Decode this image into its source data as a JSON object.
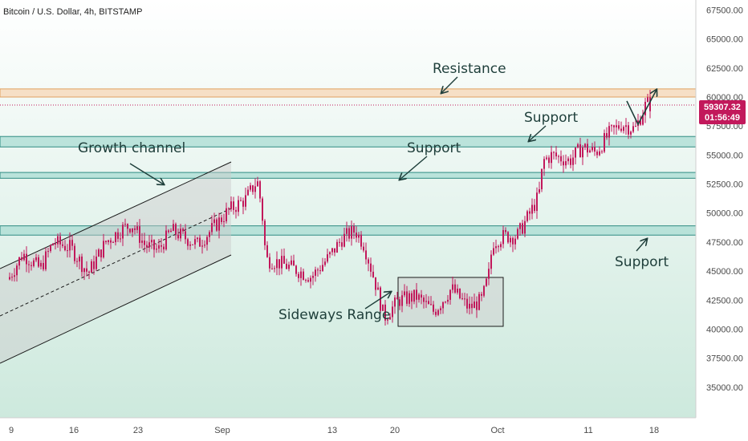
{
  "header": {
    "title": "Bitcoin / U.S. Dollar, 4h, BITSTAMP"
  },
  "price_tag": {
    "price": "59307.32",
    "countdown": "01:56:49",
    "color": "#c2185b"
  },
  "colors": {
    "background_top": "#ffffff",
    "background_bottom": "#cde9dd",
    "candle": "#c2185b",
    "zone_fill": "#a9dcd3",
    "zone_stroke": "#2e8b82",
    "resistance_fill": "#f6dcc0",
    "resistance_stroke": "#e0a060",
    "annotation": "#1e3e3a"
  },
  "chart_data": {
    "type": "candlestick",
    "title": "Bitcoin / U.S. Dollar, 4h, BITSTAMP",
    "ylim": [
      32500,
      68500
    ],
    "y_ticks": [
      "35000.00",
      "37500.00",
      "40000.00",
      "42500.00",
      "45000.00",
      "47500.00",
      "50000.00",
      "52500.00",
      "55000.00",
      "57500.00",
      "60000.00",
      "62500.00",
      "65000.00",
      "67500.00"
    ],
    "x_ticks": [
      "9",
      "16",
      "23",
      "Sep",
      "13",
      "20",
      "Oct",
      "11",
      "18"
    ],
    "grid": false,
    "last_price": 59307.32,
    "zones": [
      {
        "name": "Resistance",
        "low": 60000,
        "high": 60700
      },
      {
        "name": "Support",
        "low": 55700,
        "high": 56600
      },
      {
        "name": "Support",
        "low": 53000,
        "high": 53500
      },
      {
        "name": "Support",
        "low": 48100,
        "high": 48900
      }
    ],
    "annotations": [
      "Resistance",
      "Support",
      "Support",
      "Support",
      "Growth channel",
      "Sideways Range"
    ],
    "path": [
      [
        9,
        44500
      ],
      [
        10.5,
        46500
      ],
      [
        12.5,
        45200
      ],
      [
        14,
        47500
      ],
      [
        16,
        47000
      ],
      [
        18,
        44800
      ],
      [
        20,
        47500
      ],
      [
        22,
        48700
      ],
      [
        23,
        49000
      ],
      [
        24.5,
        47200
      ],
      [
        26,
        46800
      ],
      [
        27.5,
        48500
      ],
      [
        29,
        47900
      ],
      [
        30.5,
        47300
      ],
      [
        32,
        48500
      ],
      [
        34,
        50200
      ],
      [
        36,
        51200
      ],
      [
        37.3,
        52800
      ],
      [
        37.8,
        50500
      ],
      [
        38.3,
        46000
      ],
      [
        39.5,
        45800
      ],
      [
        41.5,
        45200
      ],
      [
        43.5,
        44500
      ],
      [
        45.5,
        46200
      ],
      [
        47,
        47800
      ],
      [
        48.5,
        48500
      ],
      [
        49.5,
        47300
      ],
      [
        50.8,
        44000
      ],
      [
        51.8,
        41000
      ],
      [
        53.5,
        42500
      ],
      [
        55.5,
        42800
      ],
      [
        57.5,
        41500
      ],
      [
        59.5,
        43500
      ],
      [
        61.5,
        41800
      ],
      [
        63,
        42500
      ],
      [
        63.8,
        44800
      ],
      [
        64.2,
        47500
      ],
      [
        65.5,
        48000
      ],
      [
        67,
        48000
      ],
      [
        68.5,
        50000
      ],
      [
        69.5,
        51500
      ],
      [
        70,
        54500
      ],
      [
        71,
        55000
      ],
      [
        73,
        54500
      ],
      [
        74.5,
        55700
      ],
      [
        76,
        55200
      ],
      [
        77.5,
        56800
      ],
      [
        79,
        57700
      ],
      [
        80.5,
        57200
      ],
      [
        81.8,
        59500
      ],
      [
        82.3,
        59300
      ]
    ]
  }
}
